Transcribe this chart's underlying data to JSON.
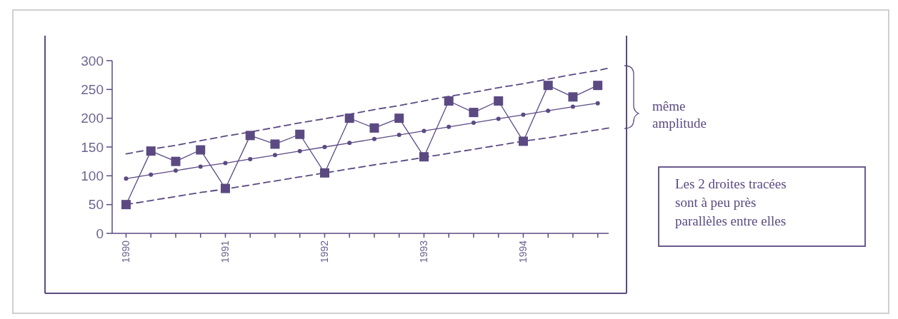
{
  "chart_data": {
    "type": "line",
    "x": [
      1990,
      1990.25,
      1990.5,
      1990.75,
      1991,
      1991.25,
      1991.5,
      1991.75,
      1992,
      1992.25,
      1992.5,
      1992.75,
      1993,
      1993.25,
      1993.5,
      1993.75,
      1994,
      1994.25,
      1994.5,
      1994.75,
      1994.86
    ],
    "series": [
      {
        "color": "#5b4a82",
        "marker": "square",
        "line_style": "solid",
        "values": [
          50,
          143,
          125,
          145,
          78,
          170,
          155,
          172,
          105,
          200,
          183,
          200,
          133,
          230,
          210,
          230,
          160,
          257,
          237,
          257,
          null
        ]
      },
      {
        "color": "#5b4a82",
        "marker": "circle",
        "line_style": "solid",
        "values": [
          95,
          102,
          109,
          116,
          122,
          129,
          136,
          143,
          150,
          157,
          164,
          171,
          178,
          185,
          192,
          199,
          206,
          213,
          220,
          226,
          null
        ]
      },
      {
        "type": "line",
        "color": "#5b4a82",
        "marker": "none",
        "line_style": "dashed",
        "values": [
          138,
          146,
          153,
          161,
          169,
          176,
          184,
          192,
          199,
          207,
          215,
          222,
          230,
          238,
          245,
          253,
          260,
          268,
          276,
          283,
          287
        ]
      },
      {
        "type": "line",
        "color": "#5b4a82",
        "marker": "none",
        "line_style": "dashed",
        "values": [
          50,
          57,
          64,
          71,
          77,
          84,
          91,
          98,
          105,
          112,
          119,
          125,
          132,
          139,
          146,
          153,
          160,
          166,
          173,
          180,
          183
        ]
      }
    ],
    "xlim": [
      1989.86,
      1994.86
    ],
    "xticks": [
      1990,
      {
        "value": 1990.25,
        "label": null
      },
      {
        "value": 1990.5,
        "label": null
      },
      {
        "value": 1990.75,
        "label": null
      },
      1991,
      {
        "value": 1991.25,
        "label": null
      },
      {
        "value": 1991.5,
        "label": null
      },
      {
        "value": 1991.75,
        "label": null
      },
      1992,
      {
        "value": 1992.25,
        "label": null
      },
      {
        "value": 1992.5,
        "label": null
      },
      {
        "value": 1992.75,
        "label": null
      },
      1993,
      {
        "value": 1993.25,
        "label": null
      },
      {
        "value": 1993.5,
        "label": null
      },
      {
        "value": 1993.75,
        "label": null
      },
      1994,
      {
        "value": 1994.25,
        "label": null
      },
      {
        "value": 1994.5,
        "label": null
      },
      {
        "value": 1994.75,
        "label": null
      }
    ],
    "ylim": [
      0,
      300
    ],
    "yticks": [
      0,
      50,
      100,
      150,
      200,
      250,
      300
    ],
    "grid": false,
    "annotations": [
      "même\namplitude",
      "Les 2 droites tracées\nsont à peu près\nparallèles entre elles"
    ]
  }
}
